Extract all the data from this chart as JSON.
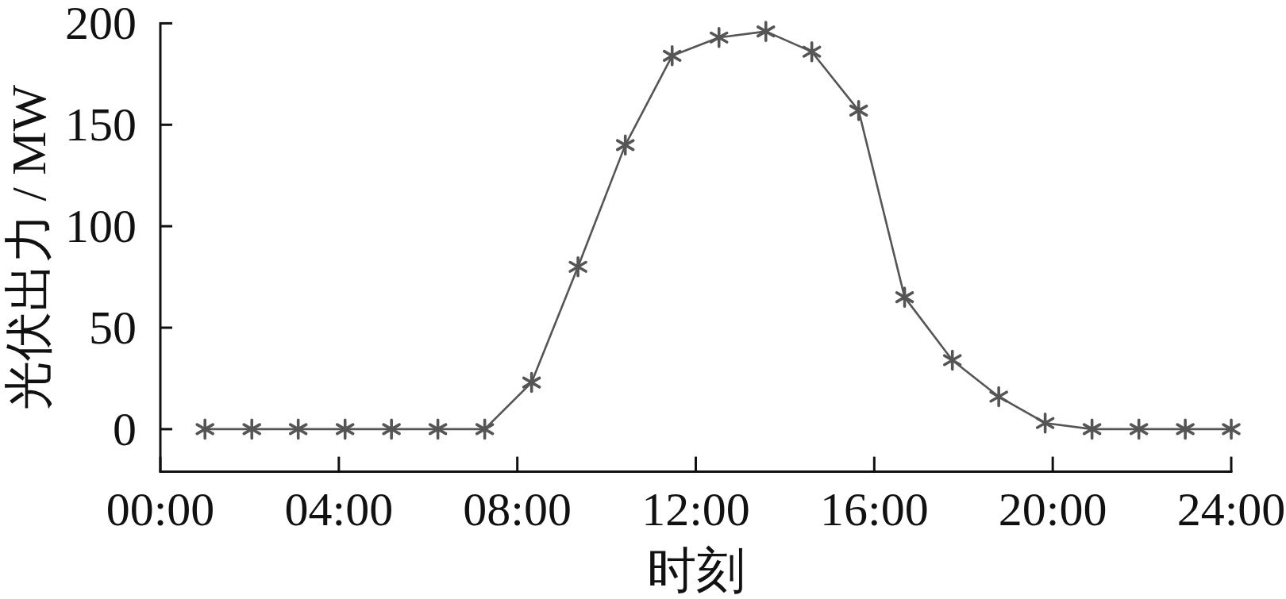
{
  "chart_data": {
    "type": "line",
    "xlabel": "时刻",
    "ylabel": "光伏出力 / MW",
    "x": [
      1.0,
      2.05,
      3.09,
      4.14,
      5.18,
      6.22,
      7.27,
      8.32,
      9.36,
      10.42,
      11.47,
      12.52,
      13.57,
      14.6,
      15.65,
      16.68,
      17.75,
      18.79,
      19.83,
      20.88,
      21.93,
      22.97,
      24.0
    ],
    "series": [
      {
        "color": "#555555",
        "values": [
          0,
          0,
          0,
          0,
          0,
          0,
          0,
          23,
          80,
          140,
          184,
          193,
          196,
          186,
          157,
          65,
          34,
          16,
          3,
          0,
          0,
          0,
          0
        ]
      }
    ],
    "xlim": [
      0,
      24
    ],
    "xticks": [
      {
        "value": 0,
        "label": "00:00"
      },
      {
        "value": 4,
        "label": "04:00"
      },
      {
        "value": 8,
        "label": "08:00"
      },
      {
        "value": 12,
        "label": "12:00"
      },
      {
        "value": 16,
        "label": "16:00"
      },
      {
        "value": 20,
        "label": "20:00"
      },
      {
        "value": 24,
        "label": "24:00"
      }
    ],
    "ylim": [
      -21,
      200
    ],
    "yticks": [
      0,
      50,
      100,
      150,
      200
    ],
    "marker": "cross",
    "line_style": "solid"
  }
}
